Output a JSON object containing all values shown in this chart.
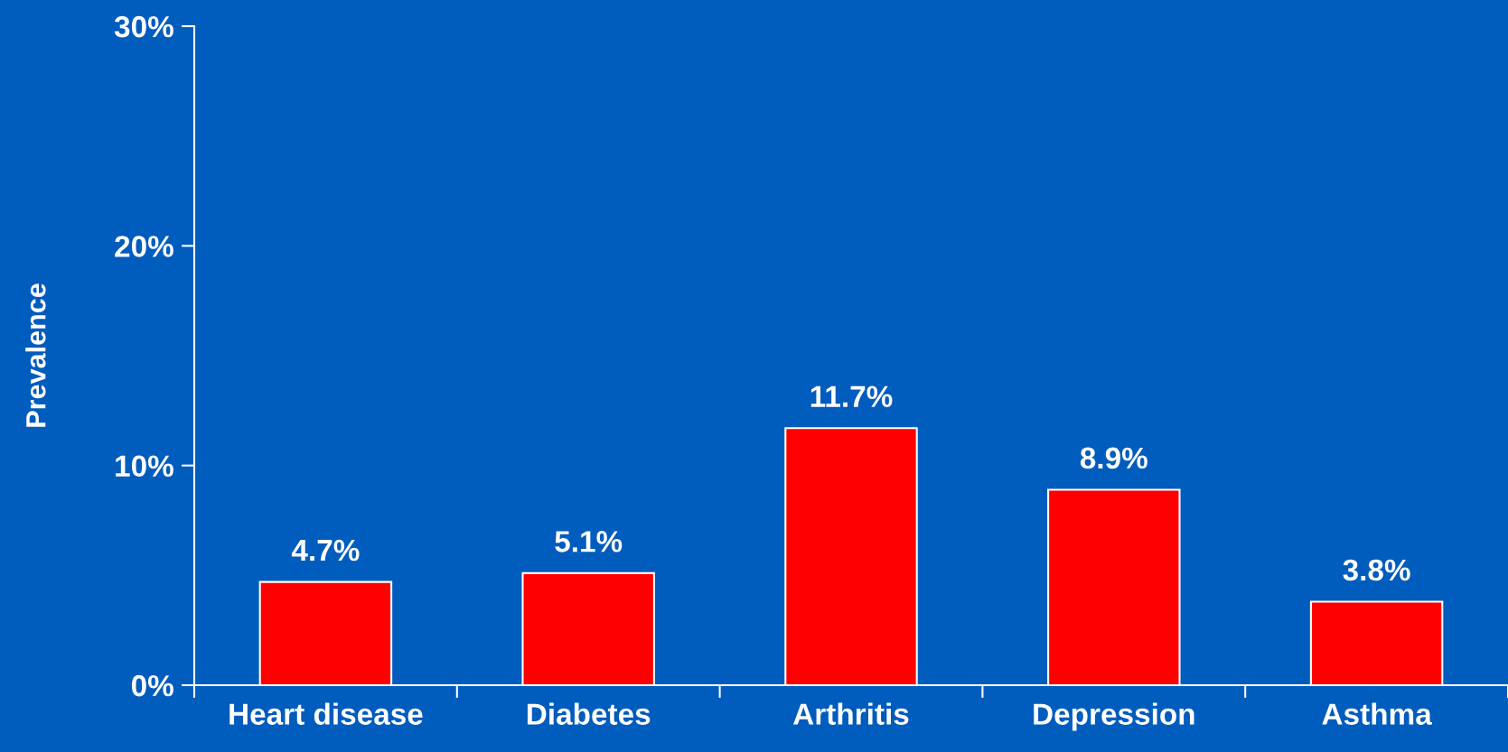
{
  "chart_data": {
    "type": "bar",
    "ylabel": "Prevalence",
    "categories": [
      "Heart disease",
      "Diabetes",
      "Arthritis",
      "Depression",
      "Asthma"
    ],
    "values": [
      4.7,
      5.1,
      11.7,
      8.9,
      3.8
    ],
    "color": "#ff0000",
    "ylim": [
      0,
      30
    ],
    "yticks": [
      {
        "value": 0,
        "label": "0%"
      },
      {
        "value": 10,
        "label": "10%"
      },
      {
        "value": 20,
        "label": "20%"
      },
      {
        "value": 30,
        "label": "30%"
      }
    ],
    "value_labels": [
      "4.7%",
      "5.1%",
      "11.7%",
      "8.9%",
      "3.8%"
    ],
    "grid": false,
    "legend": false
  }
}
